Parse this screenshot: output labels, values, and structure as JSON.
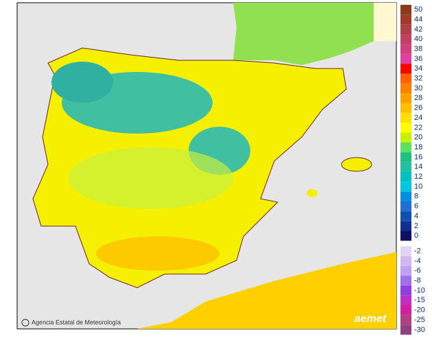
{
  "legend": [
    {
      "label": 50,
      "color": "#8b3a1a"
    },
    {
      "label": 44,
      "color": "#a03a2a"
    },
    {
      "label": 42,
      "color": "#b04048"
    },
    {
      "label": 40,
      "color": "#c04060"
    },
    {
      "label": 38,
      "color": "#d04080"
    },
    {
      "label": 36,
      "color": "#e040a0"
    },
    {
      "label": 34,
      "color": "#ff0000"
    },
    {
      "label": 32,
      "color": "#ff6000"
    },
    {
      "label": 30,
      "color": "#ff8000"
    },
    {
      "label": 28,
      "color": "#ffa000"
    },
    {
      "label": 26,
      "color": "#ffc000"
    },
    {
      "label": 24,
      "color": "#ffe000"
    },
    {
      "label": 22,
      "color": "#ffff00"
    },
    {
      "label": 20,
      "color": "#c8f000"
    },
    {
      "label": 18,
      "color": "#60e060"
    },
    {
      "label": 16,
      "color": "#20c080"
    },
    {
      "label": 14,
      "color": "#20c0a0"
    },
    {
      "label": 12,
      "color": "#00c0c0"
    },
    {
      "label": 10,
      "color": "#00c8e0"
    },
    {
      "label": 8,
      "color": "#0090e0"
    },
    {
      "label": 6,
      "color": "#2070d0"
    },
    {
      "label": 4,
      "color": "#1050b0"
    },
    {
      "label": 2,
      "color": "#103090"
    },
    {
      "label": 0,
      "color": "#101060"
    },
    {
      "label": -2,
      "color": "#e4d4f4"
    },
    {
      "label": -4,
      "color": "#d0b8f0"
    },
    {
      "label": -6,
      "color": "#c0a0f0"
    },
    {
      "label": -8,
      "color": "#a070e8"
    },
    {
      "label": -10,
      "color": "#9040e0"
    },
    {
      "label": -15,
      "color": "#c030c0"
    },
    {
      "label": -20,
      "color": "#d020a0"
    },
    {
      "label": -25,
      "color": "#b04080"
    },
    {
      "label": -30,
      "color": "#904080"
    }
  ],
  "attribution": "Agencia Estatal de Meteorología",
  "logo": "aemet"
}
